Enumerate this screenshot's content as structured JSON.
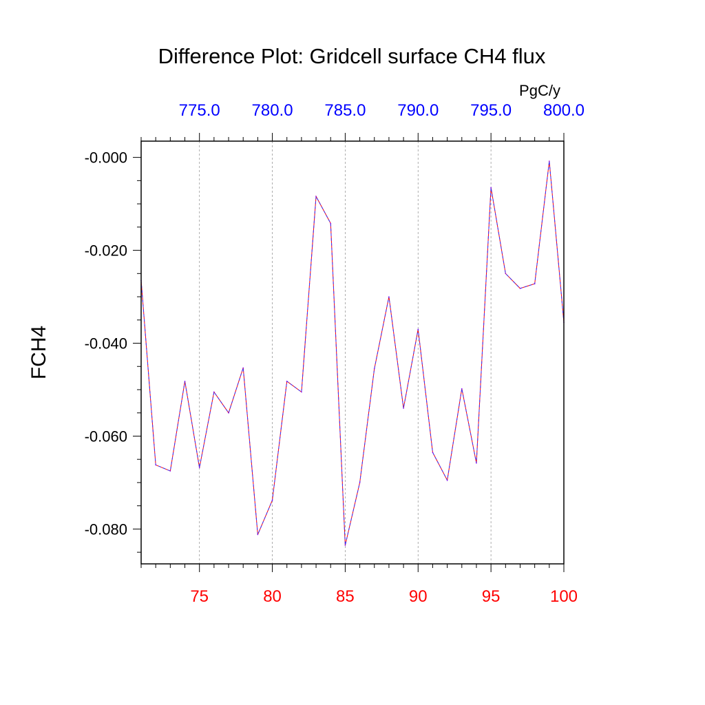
{
  "chart_data": {
    "type": "line",
    "title": "Difference Plot: Gridcell surface CH4 flux",
    "ylabel": "FCH4",
    "units": "PgC/y",
    "xlim": [
      71,
      100
    ],
    "ylim": [
      -0.0875,
      0.0035
    ],
    "x": [
      71,
      72,
      73,
      74,
      75,
      76,
      77,
      78,
      79,
      80,
      81,
      82,
      83,
      84,
      85,
      86,
      87,
      88,
      89,
      90,
      91,
      92,
      93,
      94,
      95,
      96,
      97,
      98,
      99,
      100
    ],
    "series": [
      {
        "values": [
          -0.0265,
          -0.0662,
          -0.0675,
          -0.0482,
          -0.0668,
          -0.0505,
          -0.055,
          -0.0453,
          -0.0812,
          -0.0738,
          -0.0482,
          -0.0505,
          -0.0084,
          -0.0142,
          -0.0835,
          -0.07,
          -0.0455,
          -0.03,
          -0.054,
          -0.037,
          -0.0635,
          -0.0695,
          -0.0498,
          -0.0658,
          -0.0065,
          -0.025,
          -0.0282,
          -0.0272,
          -0.0008,
          -0.0355
        ],
        "color": "#8000ff"
      }
    ],
    "bottom_ticks": {
      "values": [
        75,
        80,
        85,
        90,
        95,
        100
      ],
      "labels": [
        "75",
        "80",
        "85",
        "90",
        "95",
        "100"
      ],
      "color": "#ff0000"
    },
    "top_ticks": {
      "labels": [
        "775.0",
        "780.0",
        "785.0",
        "790.0",
        "795.0",
        "800.0"
      ],
      "color": "#0000ff"
    },
    "y_ticks": {
      "values": [
        0,
        -0.02,
        -0.04,
        -0.06,
        -0.08
      ],
      "labels": [
        "-0.000",
        "-0.020",
        "-0.040",
        "-0.060",
        "-0.080"
      ]
    },
    "grid": "vertical dashed at major x ticks",
    "legend": "none"
  }
}
